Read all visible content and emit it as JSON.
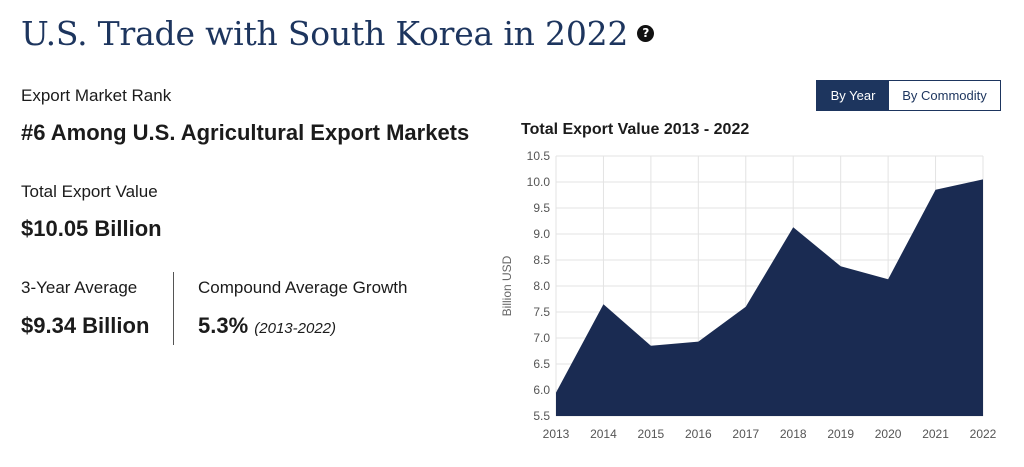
{
  "header": {
    "title": "U.S. Trade with South Korea in 2022",
    "help_icon": "question-circle-icon"
  },
  "stats": {
    "rank_label": "Export Market Rank",
    "rank_value": "#6 Among U.S. Agricultural Export Markets",
    "total_label": "Total Export Value",
    "total_value": "$10.05 Billion",
    "avg_label": "3-Year Average",
    "avg_value": "$9.34 Billion",
    "growth_label": "Compound Average Growth",
    "growth_value": "5.3%",
    "growth_period": "(2013-2022)"
  },
  "toggle": {
    "by_year": "By Year",
    "by_commodity": "By Commodity",
    "selected": "By Year"
  },
  "colors": {
    "title": "#1d355e",
    "area_fill": "#1a2b52",
    "toggle_active": "#1d355e"
  },
  "chart_data": {
    "type": "area",
    "title": "Total Export Value 2013 - 2022",
    "xlabel": "",
    "ylabel": "Billion USD",
    "categories": [
      "2013",
      "2014",
      "2015",
      "2016",
      "2017",
      "2018",
      "2019",
      "2020",
      "2021",
      "2022"
    ],
    "values": [
      5.95,
      7.65,
      6.85,
      6.93,
      7.6,
      9.13,
      8.38,
      8.13,
      9.85,
      10.05
    ],
    "ylim": [
      5.5,
      10.5
    ],
    "yticks": [
      "5.5",
      "6.0",
      "6.5",
      "7.0",
      "7.5",
      "8.0",
      "8.5",
      "9.0",
      "9.5",
      "10.0",
      "10.5"
    ],
    "grid": true,
    "legend": "none"
  }
}
